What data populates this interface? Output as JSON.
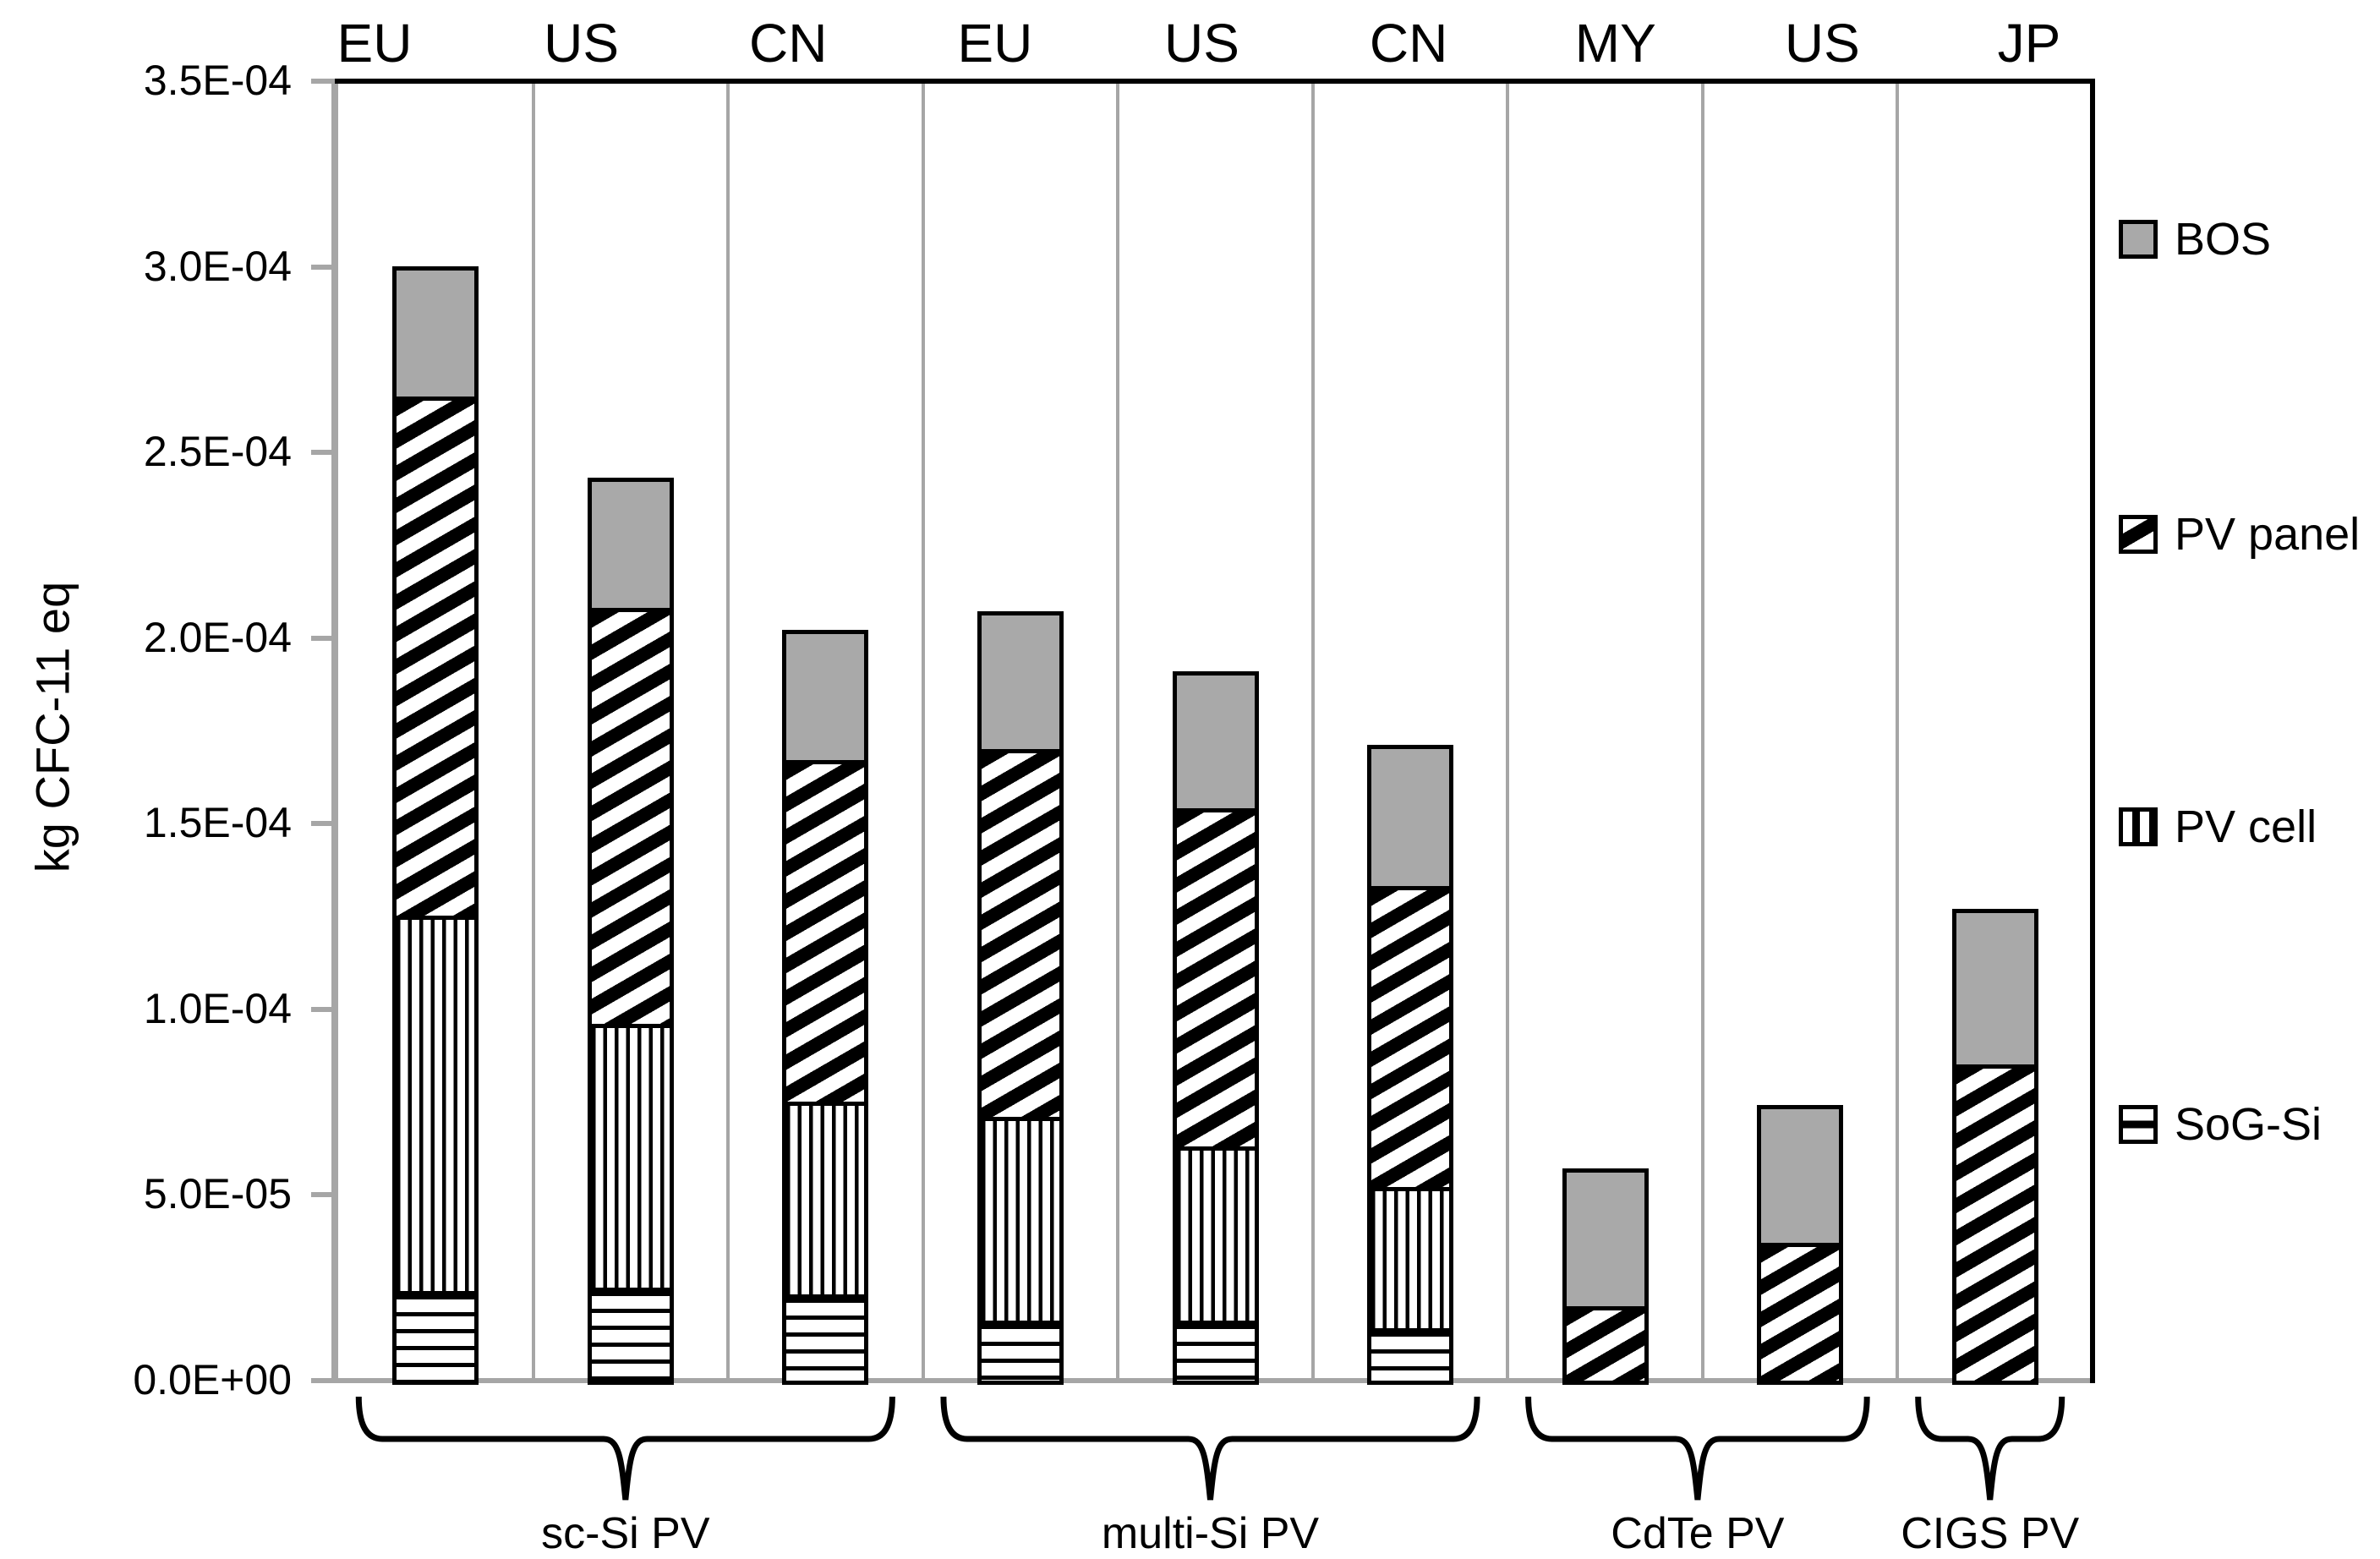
{
  "colors": {
    "bos_gray": "#a9a9a9",
    "axis_gray": "#a6a6a6",
    "line_black": "#000000",
    "background": "#ffffff"
  },
  "chart_data": {
    "type": "bar",
    "stacked": true,
    "title": "",
    "xlabel": "",
    "ylabel": "kg CFC-11 eq",
    "ylim": [
      0,
      0.00035
    ],
    "grid": "vertical-column-separators",
    "legend_position": "right",
    "ytick_values": [
      0,
      5e-05,
      0.0001,
      0.00015,
      0.0002,
      0.00025,
      0.0003,
      0.00035
    ],
    "ytick_labels": [
      "0.0E+00",
      "5.0E-05",
      "1.0E-04",
      "1.5E-04",
      "2.0E-04",
      "2.5E-04",
      "3.0E-04",
      "3.5E-04"
    ],
    "categories": [
      "EU",
      "US",
      "CN",
      "EU",
      "US",
      "CN",
      "MY",
      "US",
      "JP"
    ],
    "groups": [
      {
        "label": "sc-Si PV",
        "start": 0,
        "end": 2
      },
      {
        "label": "multi-Si PV",
        "start": 3,
        "end": 5
      },
      {
        "label": "CdTe PV",
        "start": 6,
        "end": 7
      },
      {
        "label": "CIGS PV",
        "start": 8,
        "end": 8
      }
    ],
    "series": [
      {
        "name": "SoG-Si",
        "pattern": "hlines",
        "values": [
          2.3e-05,
          2.4e-05,
          2.2e-05,
          1.5e-05,
          1.5e-05,
          1.3e-05,
          0,
          0,
          0
        ]
      },
      {
        "name": "PV cell",
        "pattern": "vlines",
        "values": [
          0.000101,
          7.1e-05,
          5.2e-05,
          5.5e-05,
          4.7e-05,
          3.8e-05,
          0,
          0,
          0
        ]
      },
      {
        "name": "PV panel",
        "pattern": "diag",
        "values": [
          0.00014,
          0.000112,
          9.2e-05,
          9.9e-05,
          9.1e-05,
          8.1e-05,
          1.9e-05,
          3.6e-05,
          8.4e-05
        ]
      },
      {
        "name": "BOS",
        "pattern": "solid",
        "color": "#a9a9a9",
        "values": [
          3.5e-05,
          3.5e-05,
          3.5e-05,
          3.7e-05,
          3.7e-05,
          3.8e-05,
          3.7e-05,
          3.7e-05,
          4.2e-05
        ]
      }
    ],
    "bar_totals": [
      0.000299,
      0.000242,
      0.000201,
      0.000206,
      0.00019,
      0.00017,
      5.6e-05,
      7.3e-05,
      0.000126
    ],
    "legend": [
      "BOS",
      "PV panel",
      "PV cell",
      "SoG-Si"
    ]
  }
}
